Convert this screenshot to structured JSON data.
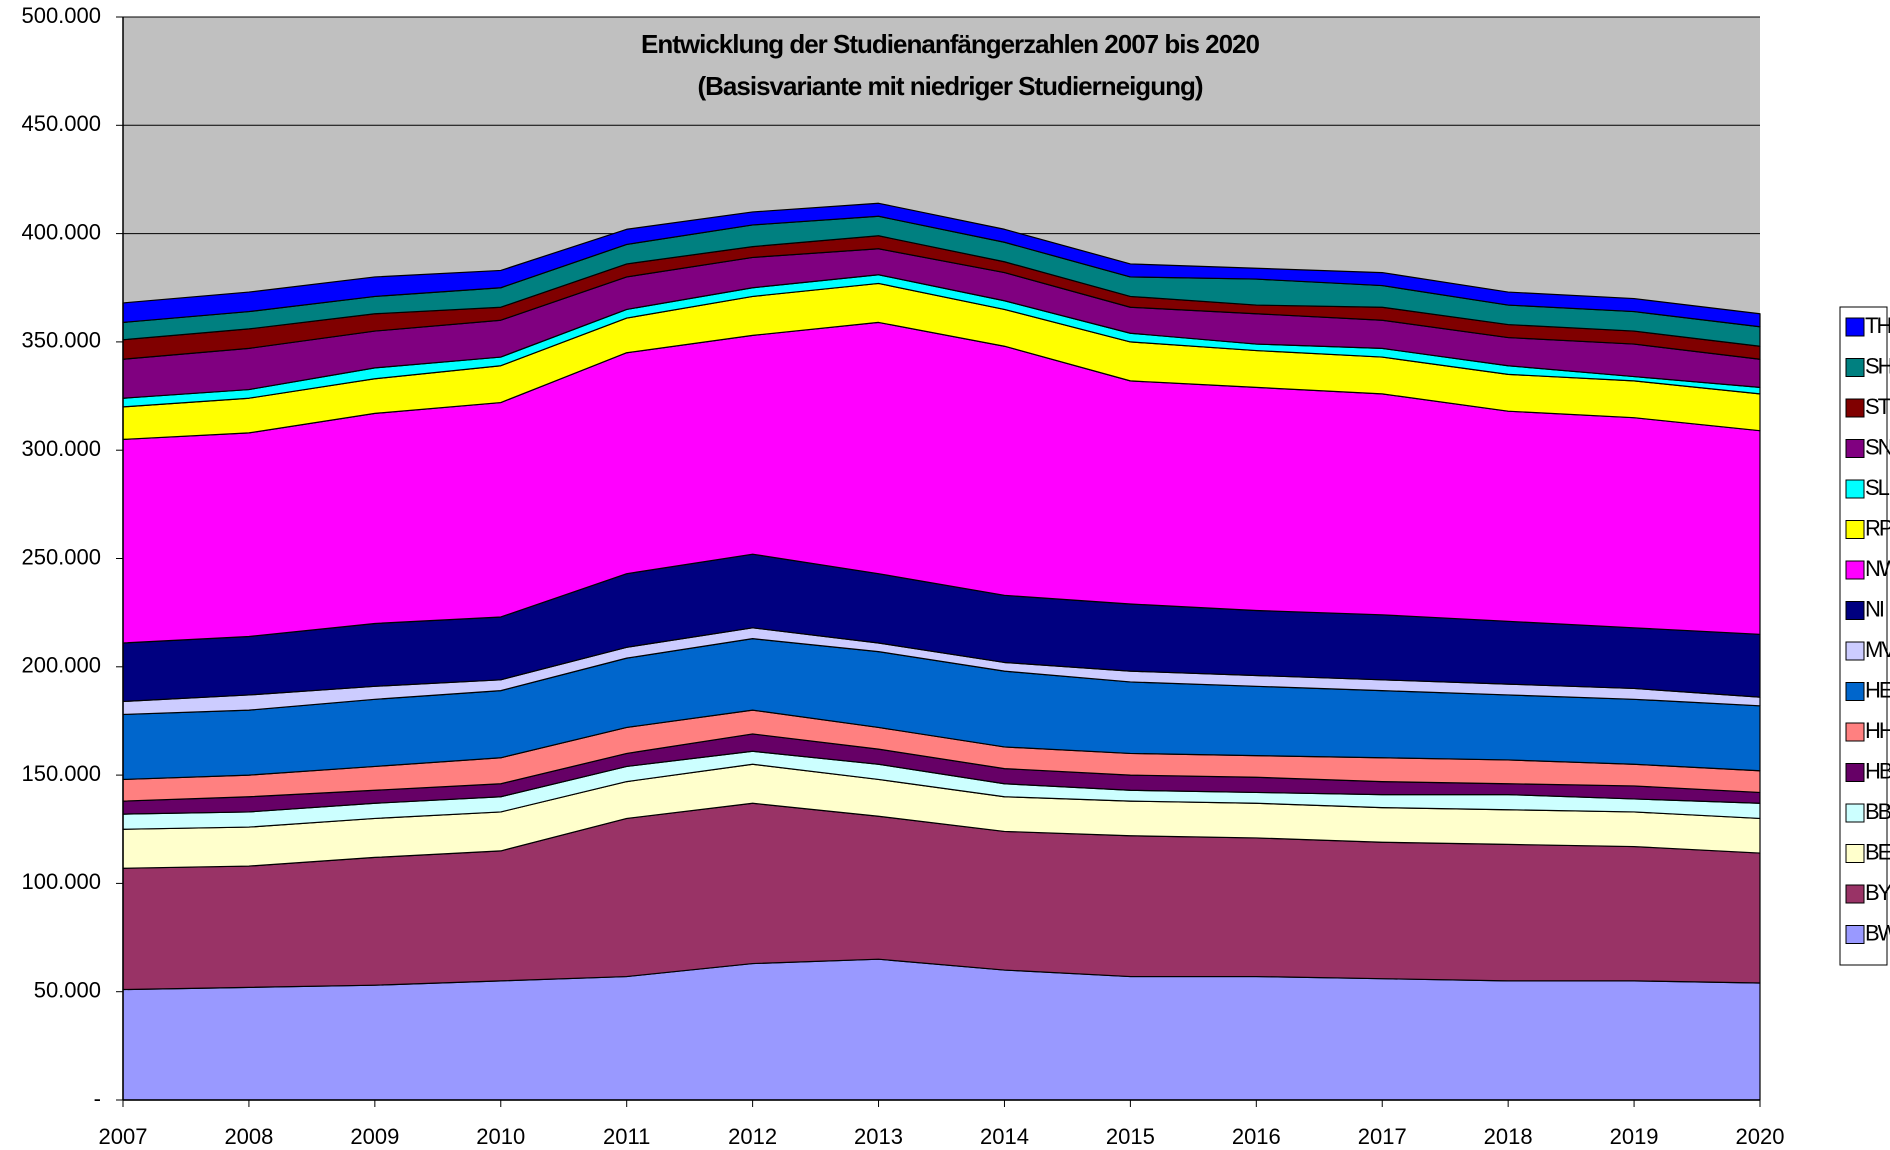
{
  "chart_data": {
    "type": "stacked_area",
    "title": "Entwicklung der Studienanfängerzahlen 2007 bis 2020",
    "subtitle": "(Basisvariante mit niedriger Studierneigung)",
    "categories": [
      "2007",
      "2008",
      "2009",
      "2010",
      "2011",
      "2012",
      "2013",
      "2014",
      "2015",
      "2016",
      "2017",
      "2018",
      "2019",
      "2020"
    ],
    "ylim": [
      0,
      500000
    ],
    "yticks": [
      {
        "value": 0,
        "label": "-"
      },
      {
        "value": 50000,
        "label": "50.000"
      },
      {
        "value": 100000,
        "label": "100.000"
      },
      {
        "value": 150000,
        "label": "150.000"
      },
      {
        "value": 200000,
        "label": "200.000"
      },
      {
        "value": 250000,
        "label": "250.000"
      },
      {
        "value": 300000,
        "label": "300.000"
      },
      {
        "value": 350000,
        "label": "350.000"
      },
      {
        "value": 400000,
        "label": "400.000"
      },
      {
        "value": 450000,
        "label": "450.000"
      },
      {
        "value": 500000,
        "label": "500.000"
      }
    ],
    "grid": true,
    "background": "#c0c0c0",
    "legend": "right",
    "series": [
      {
        "name": "BW",
        "color": "#9999ff",
        "values": [
          51000,
          52000,
          53000,
          55000,
          57000,
          63000,
          65000,
          60000,
          57000,
          57000,
          56000,
          55000,
          55000,
          54000
        ]
      },
      {
        "name": "BY",
        "color": "#993366",
        "values": [
          56000,
          56000,
          59000,
          60000,
          73000,
          74000,
          66000,
          64000,
          65000,
          64000,
          63000,
          63000,
          62000,
          60000
        ]
      },
      {
        "name": "BE",
        "color": "#ffffcc",
        "values": [
          18000,
          18000,
          18000,
          18000,
          17000,
          18000,
          17000,
          16000,
          16000,
          16000,
          16000,
          16000,
          16000,
          16000
        ]
      },
      {
        "name": "BB",
        "color": "#ccffff",
        "values": [
          7000,
          7000,
          7000,
          7000,
          7000,
          6000,
          7000,
          6000,
          5000,
          5000,
          6000,
          7000,
          6000,
          7000
        ]
      },
      {
        "name": "HB",
        "color": "#660066",
        "values": [
          6000,
          7000,
          6000,
          6000,
          6000,
          8000,
          7000,
          7000,
          7000,
          7000,
          6000,
          5000,
          6000,
          5000
        ]
      },
      {
        "name": "HH",
        "color": "#ff8080",
        "values": [
          10000,
          10000,
          11000,
          12000,
          12000,
          11000,
          10000,
          10000,
          10000,
          10000,
          11000,
          11000,
          10000,
          10000
        ]
      },
      {
        "name": "HE",
        "color": "#0066cc",
        "values": [
          30000,
          30000,
          31000,
          31000,
          32000,
          33000,
          35000,
          35000,
          33000,
          32000,
          31000,
          30000,
          30000,
          30000
        ]
      },
      {
        "name": "MV",
        "color": "#ccccff",
        "values": [
          6000,
          7000,
          6000,
          5000,
          5000,
          5000,
          4000,
          4000,
          5000,
          5000,
          5000,
          5000,
          5000,
          4000
        ]
      },
      {
        "name": "NI",
        "color": "#000080",
        "values": [
          27000,
          27000,
          29000,
          29000,
          34000,
          34000,
          32000,
          31000,
          31000,
          30000,
          30000,
          29000,
          28000,
          29000
        ]
      },
      {
        "name": "NW",
        "color": "#ff00ff",
        "values": [
          94000,
          94000,
          97000,
          99000,
          102000,
          101000,
          116000,
          115000,
          103000,
          103000,
          102000,
          97000,
          97000,
          94000
        ]
      },
      {
        "name": "RP",
        "color": "#ffff00",
        "values": [
          15000,
          16000,
          16000,
          17000,
          16000,
          18000,
          18000,
          17000,
          18000,
          17000,
          17000,
          17000,
          17000,
          17000
        ]
      },
      {
        "name": "SL",
        "color": "#00ffff",
        "values": [
          4000,
          4000,
          5000,
          4000,
          4000,
          4000,
          4000,
          4000,
          4000,
          3000,
          4000,
          4000,
          2000,
          3000
        ]
      },
      {
        "name": "SN",
        "color": "#800080",
        "values": [
          18000,
          19000,
          17000,
          17000,
          15000,
          14000,
          12000,
          13000,
          12000,
          14000,
          13000,
          13000,
          15000,
          13000
        ]
      },
      {
        "name": "ST",
        "color": "#800000",
        "values": [
          9000,
          9000,
          8000,
          6000,
          6000,
          5000,
          6000,
          5000,
          5000,
          4000,
          6000,
          6000,
          6000,
          6000
        ]
      },
      {
        "name": "SH",
        "color": "#008080",
        "values": [
          8000,
          8000,
          8000,
          9000,
          9000,
          10000,
          9000,
          9000,
          9000,
          12000,
          10000,
          9000,
          9000,
          9000
        ]
      },
      {
        "name": "TH",
        "color": "#0000ff",
        "values": [
          9000,
          9000,
          9000,
          8000,
          7000,
          6000,
          6000,
          6000,
          6000,
          5000,
          6000,
          6000,
          6000,
          6000
        ]
      }
    ]
  }
}
